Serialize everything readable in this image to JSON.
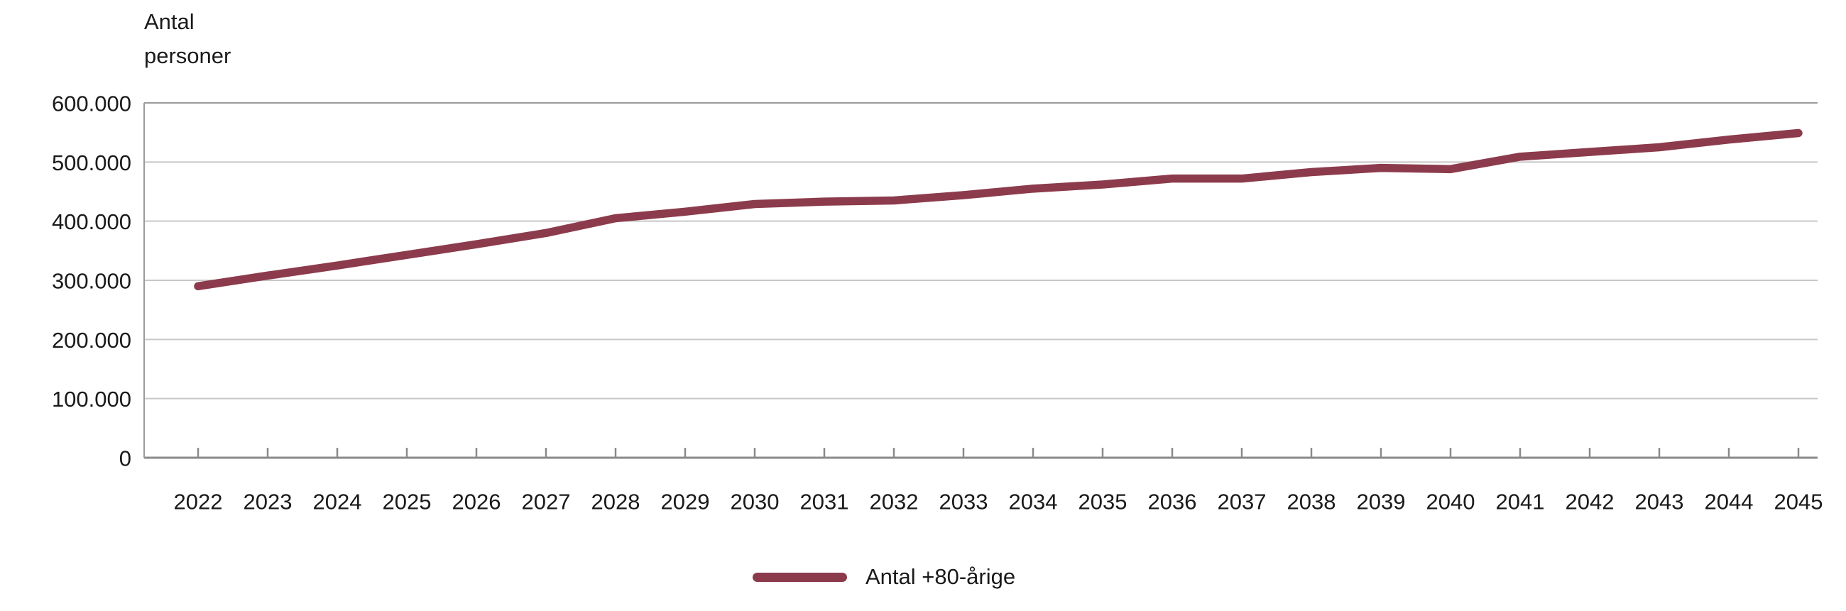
{
  "chart_data": {
    "type": "line",
    "ylabel": "Antal personer",
    "ylabel_lines": {
      "line1": "Antal",
      "line2": "personer"
    },
    "categories": [
      "2022",
      "2023",
      "2024",
      "2025",
      "2026",
      "2027",
      "2028",
      "2029",
      "2030",
      "2031",
      "2032",
      "2033",
      "2034",
      "2035",
      "2036",
      "2037",
      "2038",
      "2039",
      "2040",
      "2041",
      "2042",
      "2043",
      "2044",
      "2045"
    ],
    "series": [
      {
        "name": "Antal +80-årige",
        "values": [
          290000,
          308000,
          325000,
          343000,
          361000,
          380000,
          405000,
          416000,
          429000,
          433000,
          435000,
          444000,
          455000,
          462000,
          472000,
          472000,
          483000,
          490000,
          488000,
          509000,
          517000,
          525000,
          538000,
          549000
        ]
      }
    ],
    "ylim": [
      0,
      600000
    ],
    "y_ticks": [
      600000,
      500000,
      400000,
      300000,
      200000,
      100000,
      0
    ],
    "y_tick_labels": [
      "600.000",
      "500.000",
      "400.000",
      "300.000",
      "200.000",
      "100.000",
      "0"
    ],
    "grid": "horizontal",
    "legend": {
      "position": "bottom",
      "label": "Antal +80-årige"
    },
    "colors": {
      "line": "#8c3b4c",
      "grid": "#c7c7c7",
      "border": "#9b9b9b",
      "axis": "#8a8a8a",
      "text": "#1a1a1a",
      "background": "#ffffff"
    }
  }
}
